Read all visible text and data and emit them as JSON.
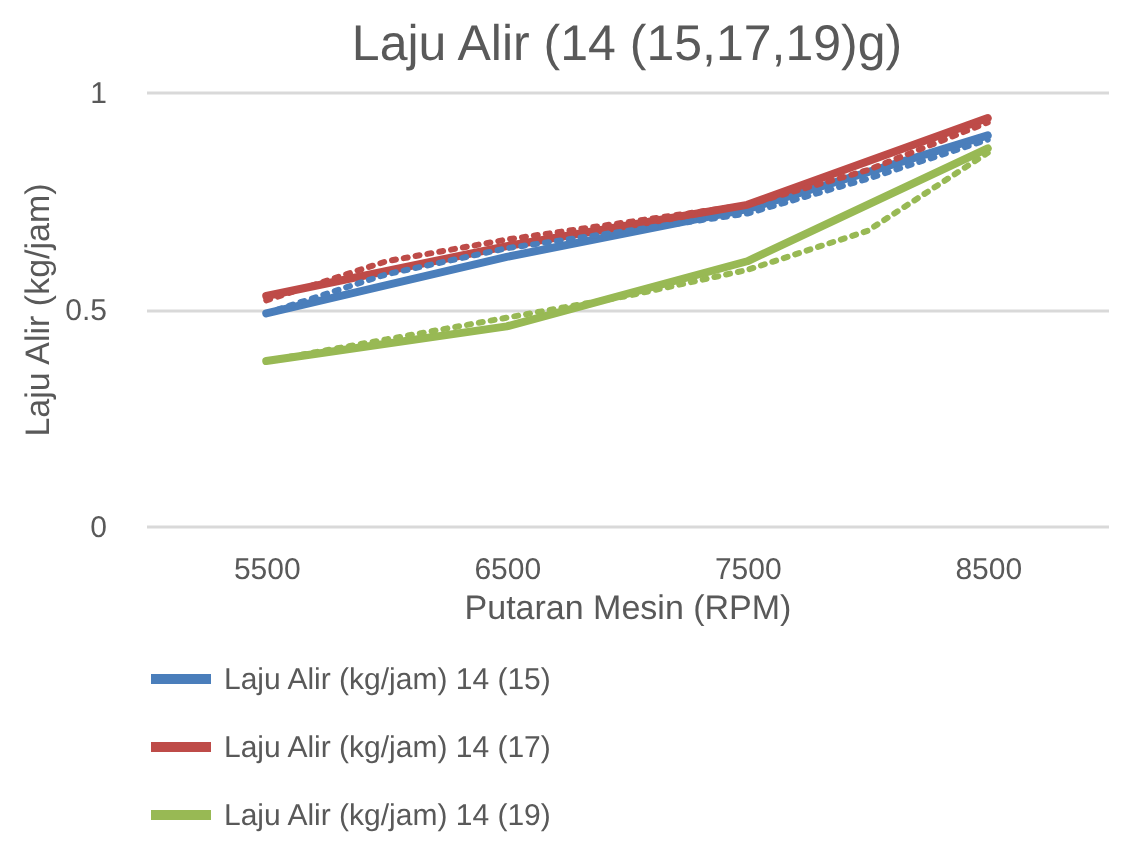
{
  "chart_data": {
    "type": "line",
    "title": "Laju Alir (14 (15,17,19)g)",
    "xlabel": "Putaran Mesin (RPM)",
    "ylabel": "Laju Alir (kg/jam)",
    "x": [
      5500,
      6500,
      7500,
      8500
    ],
    "series": [
      {
        "name": "Laju Alir (kg/jam) 14 (15)",
        "color": "#4a7ebb",
        "values": [
          0.49,
          0.62,
          0.73,
          0.9
        ]
      },
      {
        "name": "Laju Alir (kg/jam) 14 (17)",
        "color": "#be4b48",
        "values": [
          0.53,
          0.645,
          0.74,
          0.94
        ]
      },
      {
        "name": "Laju Alir (kg/jam) 14 (19)",
        "color": "#98b954",
        "values": [
          0.38,
          0.46,
          0.61,
          0.87
        ]
      },
      {
        "color": "#4a7ebb",
        "line_style": "dotted",
        "x": [
          5500,
          6000,
          6500,
          7000,
          7500,
          8000,
          8500
        ],
        "values": [
          0.49,
          0.58,
          0.64,
          0.68,
          0.72,
          0.8,
          0.89
        ]
      },
      {
        "color": "#be4b48",
        "line_style": "dotted",
        "x": [
          5500,
          6000,
          6500,
          7000,
          7500,
          8000,
          8500
        ],
        "values": [
          0.52,
          0.61,
          0.66,
          0.7,
          0.74,
          0.82,
          0.93
        ]
      },
      {
        "color": "#98b954",
        "line_style": "dotted",
        "x": [
          5500,
          6000,
          6500,
          7000,
          7500,
          8000,
          8500
        ],
        "values": [
          0.38,
          0.43,
          0.48,
          0.53,
          0.59,
          0.68,
          0.86
        ]
      }
    ],
    "xlim": [
      5000,
      9000
    ],
    "xticks": [
      5500,
      6500,
      7500,
      8500
    ],
    "ylim": [
      0,
      1
    ],
    "yticks": [
      0,
      0.5,
      1
    ],
    "grid": "y",
    "legend": "bottom",
    "line_style": "solid",
    "marker": "none"
  }
}
